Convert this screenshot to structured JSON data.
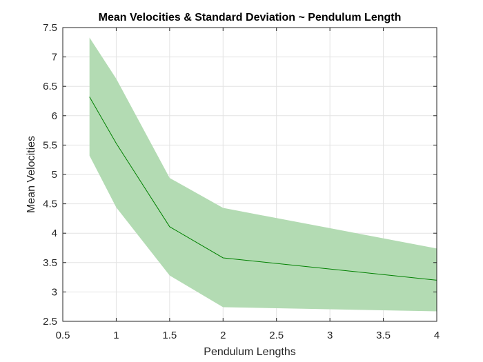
{
  "chart_data": {
    "type": "area",
    "title": "Mean Velocities & Standard Deviation ~ Pendulum Length",
    "xlabel": "Pendulum Lengths",
    "ylabel": "Mean Velocities",
    "xlim": [
      0.5,
      4
    ],
    "ylim": [
      2.5,
      7.5
    ],
    "x_ticks": [
      "0.5",
      "1",
      "1.5",
      "2",
      "2.5",
      "3",
      "3.5",
      "4"
    ],
    "y_ticks": [
      "2.5",
      "3",
      "3.5",
      "4",
      "4.5",
      "5",
      "5.5",
      "6",
      "6.5",
      "7",
      "7.5"
    ],
    "x_tick_values": [
      0.5,
      1,
      1.5,
      2,
      2.5,
      3,
      3.5,
      4
    ],
    "y_tick_values": [
      2.5,
      3,
      3.5,
      4,
      4.5,
      5,
      5.5,
      6,
      6.5,
      7,
      7.5
    ],
    "grid": true,
    "x": [
      0.75,
      1,
      1.5,
      2,
      4
    ],
    "series": [
      {
        "values": [
          6.32,
          5.53,
          4.11,
          3.58,
          3.2
        ]
      }
    ],
    "band_upper": [
      7.33,
      6.63,
      4.94,
      4.43,
      3.74
    ],
    "band_lower": [
      5.32,
      4.44,
      3.28,
      2.74,
      2.67
    ],
    "colors": {
      "line": "#008000",
      "band": "#b3dbb3",
      "grid": "#e3e3e3",
      "axis": "#262626"
    }
  }
}
